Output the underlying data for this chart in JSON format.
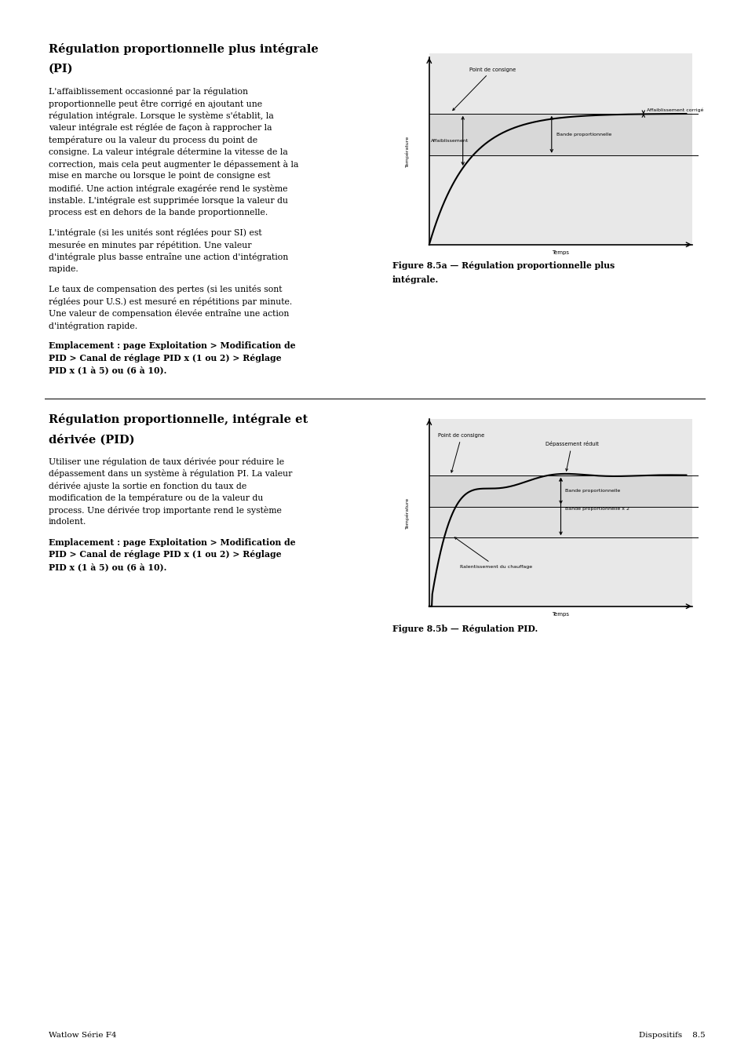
{
  "page_bg": "#ffffff",
  "page_width": 9.54,
  "page_height": 13.51,
  "section1_title_line1": "Régulation proportionnelle plus intégrale",
  "section1_title_line2": "(PI)",
  "section1_para1": [
    "L'affaiblissement occasionné par la régulation",
    "proportionnelle peut être corrigé en ajoutant une",
    "régulation intégrale. Lorsque le système s'établit, la",
    "valeur intégrale est réglée de façon à rapprocher la",
    "température ou la valeur du process du point de",
    "consigne. La valeur intégrale détermine la vitesse de la",
    "correction, mais cela peut augmenter le dépassement à la",
    "mise en marche ou lorsque le point de consigne est",
    "modifié. Une action intégrale exagérée rend le système",
    "instable. L'intégrale est supprimée lorsque la valeur du",
    "process est en dehors de la bande proportionnelle."
  ],
  "section1_para2": [
    "L'intégrale (si les unités sont réglées pour SI) est",
    "mesurée en minutes par répétition. Une valeur",
    "d'intégrale plus basse entraîne une action d'intégration",
    "rapide."
  ],
  "section1_para3": [
    "Le taux de compensation des pertes (si les unités sont",
    "réglées pour U.S.) est mesuré en répétitions par minute.",
    "Une valeur de compensation élevée entraîne une action",
    "d'intégration rapide."
  ],
  "section1_para4": [
    "bold:Emplacement : page Exploitation > Modification de",
    "bold:PID > Canal de réglage PID x (1 ou 2) > Réglage",
    "bold:PID x (1 à 5) ou (6 à 10)."
  ],
  "section2_title_line1": "Régulation proportionnelle, intégrale et",
  "section2_title_line2": "dérivée (PID)",
  "section2_para1": [
    "Utiliser une régulation de taux dérivée pour réduire le",
    "dépassement dans un système à régulation PI. La valeur",
    "dérivée ajuste la sortie en fonction du taux de",
    "modification de la température ou de la valeur du",
    "process. Une dérivée trop importante rend le système",
    "indolent."
  ],
  "section2_para2": [
    "bold:Emplacement : page Exploitation > Modification de",
    "bold:PID > Canal de réglage PID x (1 ou 2) > Réglage",
    "bold:PID x (1 à 5) ou (6 à 10)."
  ],
  "fig1_caption_line1": "Figure 8.5a — Régulation proportionnelle plus",
  "fig1_caption_line2": "intégrale.",
  "fig2_caption": "Figure 8.5b — Régulation PID.",
  "footer_left": "Watlow Série F4",
  "footer_right": "Dispositifs    8.5",
  "chart_bg_light": "#e0e0e0",
  "chart_bg_lighter": "#ebebeb",
  "chart_line_color": "#000000"
}
